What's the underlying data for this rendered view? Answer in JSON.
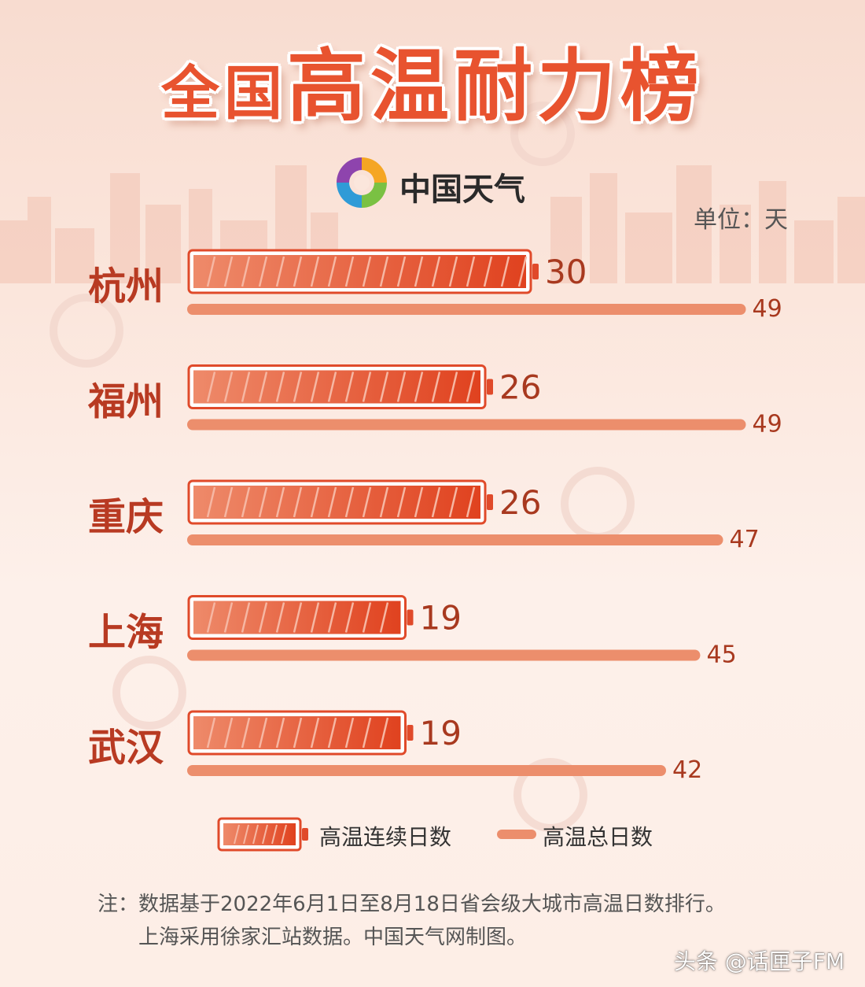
{
  "header": {
    "title_prefix": "全国",
    "title_main": "高温耐力榜",
    "brand": "中国天气",
    "unit": "单位：天"
  },
  "chart_data": {
    "type": "bar",
    "categories": [
      "杭州",
      "福州",
      "重庆",
      "上海",
      "武汉"
    ],
    "series": [
      {
        "name": "高温连续日数",
        "values": [
          30,
          26,
          26,
          19,
          19
        ]
      },
      {
        "name": "高温总日数",
        "values": [
          49,
          49,
          47,
          45,
          42
        ]
      }
    ],
    "orientation": "horizontal",
    "legend_position": "bottom"
  },
  "legend": {
    "consecutive": "高温连续日数",
    "total": "高温总日数"
  },
  "note": {
    "line1": "注：数据基于2022年6月1日至8月18日省会级大城市高温日数排行。",
    "line2": "上海采用徐家汇站数据。中国天气网制图。"
  },
  "footer": {
    "attribution": "头条 @话匣子FM"
  },
  "colors": {
    "accent": "#e8532f",
    "bar_light": "#ee8a6a",
    "bar_dark": "#e0421f",
    "city_text": "#b83a22"
  }
}
